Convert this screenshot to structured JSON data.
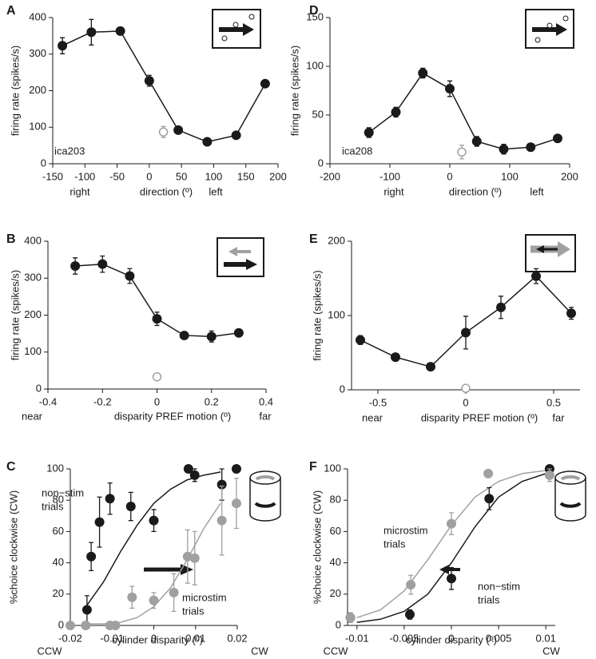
{
  "chart_data": [
    {
      "type": "line",
      "label": "A",
      "ylabel": "firing rate (spikes/s)",
      "xlabel": "direction (º)",
      "x_left_label": "right",
      "x_right_label": "left",
      "inset_text": "ica203",
      "xlim": [
        -150,
        200
      ],
      "xticks": [
        -150,
        -100,
        -50,
        0,
        50,
        100,
        150,
        200
      ],
      "ylim": [
        0,
        400
      ],
      "yticks": [
        0,
        100,
        200,
        300,
        400
      ],
      "series": [
        {
          "color": "#1a1a1a",
          "marker": "filled",
          "line": true,
          "x": [
            -135,
            -90,
            -45,
            0,
            45,
            90,
            135,
            180
          ],
          "values": [
            323,
            360,
            363,
            227,
            92,
            60,
            78,
            219
          ],
          "errors": [
            22,
            35,
            10,
            15,
            8,
            10,
            8,
            8
          ]
        },
        {
          "color": "#a0a0a0",
          "marker": "open",
          "line": false,
          "x": [
            22
          ],
          "values": [
            87
          ],
          "errors": [
            15
          ]
        }
      ]
    },
    {
      "type": "line",
      "label": "B",
      "ylabel": "firing rate (spikes/s)",
      "xlabel": "disparity PREF motion (º)",
      "x_left_label": "near",
      "x_right_label": "far",
      "xlim": [
        -0.4,
        0.4
      ],
      "xticks": [
        -0.4,
        -0.2,
        0,
        0.2,
        0.4
      ],
      "ylim": [
        0,
        400
      ],
      "yticks": [
        0,
        100,
        200,
        300,
        400
      ],
      "series": [
        {
          "color": "#1a1a1a",
          "marker": "filled",
          "line": true,
          "x": [
            -0.3,
            -0.2,
            -0.1,
            0,
            0.1,
            0.2,
            0.3
          ],
          "values": [
            333,
            338,
            306,
            190,
            145,
            142,
            152
          ],
          "errors": [
            22,
            22,
            20,
            18,
            5,
            15,
            5
          ]
        },
        {
          "color": "#a0a0a0",
          "marker": "open",
          "line": false,
          "x": [
            0
          ],
          "values": [
            33
          ],
          "errors": [
            8
          ]
        }
      ]
    },
    {
      "type": "line",
      "label": "C",
      "ylabel": "%choice clockwise (CW)",
      "xlabel": "cylinder disparity (º)",
      "x_left_label": "CCW",
      "x_right_label": "CW",
      "xlim": [
        -0.02,
        0.02
      ],
      "xticks": [
        -0.02,
        -0.01,
        0,
        0.01,
        0.02
      ],
      "ylim": [
        0,
        100
      ],
      "yticks": [
        0,
        20,
        40,
        60,
        80,
        100
      ],
      "annotations": [
        {
          "lines": [
            "non−stim",
            "trials"
          ],
          "color": "#1a1a1a"
        },
        {
          "lines": [
            "microstim",
            "trials"
          ],
          "color": "#a0a0a0"
        }
      ],
      "series": [
        {
          "color": "#1a1a1a",
          "marker": "none",
          "line": true,
          "x": [
            -0.016,
            -0.012,
            -0.008,
            -0.004,
            0,
            0.004,
            0.008,
            0.012,
            0.016
          ],
          "values": [
            13,
            28,
            47,
            64,
            78,
            87,
            93,
            96,
            98
          ]
        },
        {
          "color": "#a0a0a0",
          "marker": "none",
          "line": true,
          "x": [
            -0.016,
            -0.012,
            -0.008,
            -0.004,
            0,
            0.004,
            0.008,
            0.012,
            0.016
          ],
          "values": [
            1,
            1,
            2,
            5,
            12,
            24,
            42,
            62,
            78
          ]
        },
        {
          "color": "#1a1a1a",
          "marker": "filled",
          "line": false,
          "x": [
            -0.016,
            -0.015,
            -0.013,
            -0.0105,
            -0.0055,
            0,
            0.0083,
            0.0098,
            0.0163,
            0.0198
          ],
          "values": [
            10,
            44,
            66,
            81,
            76,
            67,
            100,
            96,
            90,
            100
          ],
          "errors": [
            9,
            9,
            16,
            10,
            9,
            7,
            null,
            4,
            10,
            null
          ]
        },
        {
          "color": "#a0a0a0",
          "marker": "filled",
          "line": false,
          "x": [
            -0.02,
            -0.0163,
            -0.0105,
            -0.0092,
            -0.0052,
            0,
            0.0048,
            0.0081,
            0.0098,
            0.0163,
            0.0198
          ],
          "values": [
            0,
            0,
            0,
            0,
            18,
            16,
            21,
            44,
            43,
            67,
            78
          ],
          "errors": [
            null,
            null,
            null,
            null,
            7,
            5,
            12,
            17,
            17,
            22,
            16
          ]
        }
      ]
    },
    {
      "type": "line",
      "label": "D",
      "ylabel": "firing rate (spikes/s)",
      "xlabel": "direction (º)",
      "x_left_label": "right",
      "x_right_label": "left",
      "inset_text": "ica208",
      "xlim": [
        -200,
        200
      ],
      "xticks": [
        -200,
        -100,
        0,
        100,
        200
      ],
      "ylim": [
        0,
        150
      ],
      "yticks": [
        0,
        50,
        100,
        150
      ],
      "series": [
        {
          "color": "#1a1a1a",
          "marker": "filled",
          "line": true,
          "x": [
            -135,
            -90,
            -45,
            0,
            45,
            90,
            135,
            180
          ],
          "values": [
            32,
            53,
            93,
            77,
            23,
            15,
            17,
            26
          ],
          "errors": [
            5,
            5,
            5,
            8,
            5,
            5,
            3,
            3
          ]
        },
        {
          "color": "#a0a0a0",
          "marker": "open",
          "line": false,
          "x": [
            20
          ],
          "values": [
            12
          ],
          "errors": [
            7
          ]
        }
      ]
    },
    {
      "type": "line",
      "label": "E",
      "ylabel": "firing rate (spikes/s)",
      "xlabel": "disparity PREF motion (º)",
      "x_left_label": "near",
      "x_right_label": "far",
      "xlim": [
        -0.65,
        0.65
      ],
      "xticks": [
        -0.5,
        0,
        0.5
      ],
      "ylim": [
        0,
        200
      ],
      "yticks": [
        0,
        100,
        200
      ],
      "series": [
        {
          "color": "#1a1a1a",
          "marker": "filled",
          "line": true,
          "x": [
            -0.6,
            -0.4,
            -0.2,
            0,
            0.2,
            0.4,
            0.6
          ],
          "values": [
            67,
            44,
            31,
            77,
            111,
            153,
            103
          ],
          "errors": [
            6,
            3,
            3,
            22,
            15,
            10,
            8
          ]
        },
        {
          "color": "#a0a0a0",
          "marker": "open",
          "line": false,
          "x": [
            0
          ],
          "values": [
            2
          ],
          "errors": [
            null
          ]
        }
      ]
    },
    {
      "type": "line",
      "label": "F",
      "ylabel": "%choice clockwise (CW)",
      "xlabel": "cylinder disparity (º)",
      "x_left_label": "CCW",
      "x_right_label": "CW",
      "xlim": [
        -0.011,
        0.011
      ],
      "xticks": [
        -0.01,
        -0.005,
        0,
        0.005,
        0.01
      ],
      "ylim": [
        0,
        100
      ],
      "yticks": [
        0,
        20,
        40,
        60,
        80,
        100
      ],
      "annotations": [
        {
          "lines": [
            "microstim",
            "trials"
          ],
          "color": "#a0a0a0"
        },
        {
          "lines": [
            "non−stim",
            "trials"
          ],
          "color": "#1a1a1a"
        }
      ],
      "series": [
        {
          "color": "#1a1a1a",
          "marker": "none",
          "line": true,
          "x": [
            -0.01,
            -0.0075,
            -0.005,
            -0.0025,
            0,
            0.0025,
            0.005,
            0.0075,
            0.01
          ],
          "values": [
            2,
            4,
            9,
            20,
            40,
            63,
            82,
            92,
            97
          ]
        },
        {
          "color": "#a0a0a0",
          "marker": "none",
          "line": true,
          "x": [
            -0.01,
            -0.0075,
            -0.005,
            -0.0025,
            0,
            0.0025,
            0.005,
            0.0075,
            0.01
          ],
          "values": [
            5,
            10,
            22,
            42,
            64,
            82,
            92,
            97,
            99
          ]
        },
        {
          "color": "#1a1a1a",
          "marker": "filled",
          "line": false,
          "x": [
            -0.0107,
            -0.0044,
            0,
            0.004,
            0.0104
          ],
          "values": [
            5,
            7,
            30,
            81,
            100
          ],
          "errors": [
            3,
            3,
            7,
            7,
            null
          ]
        },
        {
          "color": "#a0a0a0",
          "marker": "filled",
          "line": false,
          "x": [
            -0.0107,
            -0.0043,
            0,
            0.0039,
            0.0104
          ],
          "values": [
            5,
            26,
            65,
            97,
            96
          ],
          "errors": [
            3,
            6,
            7,
            null,
            4
          ]
        }
      ]
    }
  ]
}
